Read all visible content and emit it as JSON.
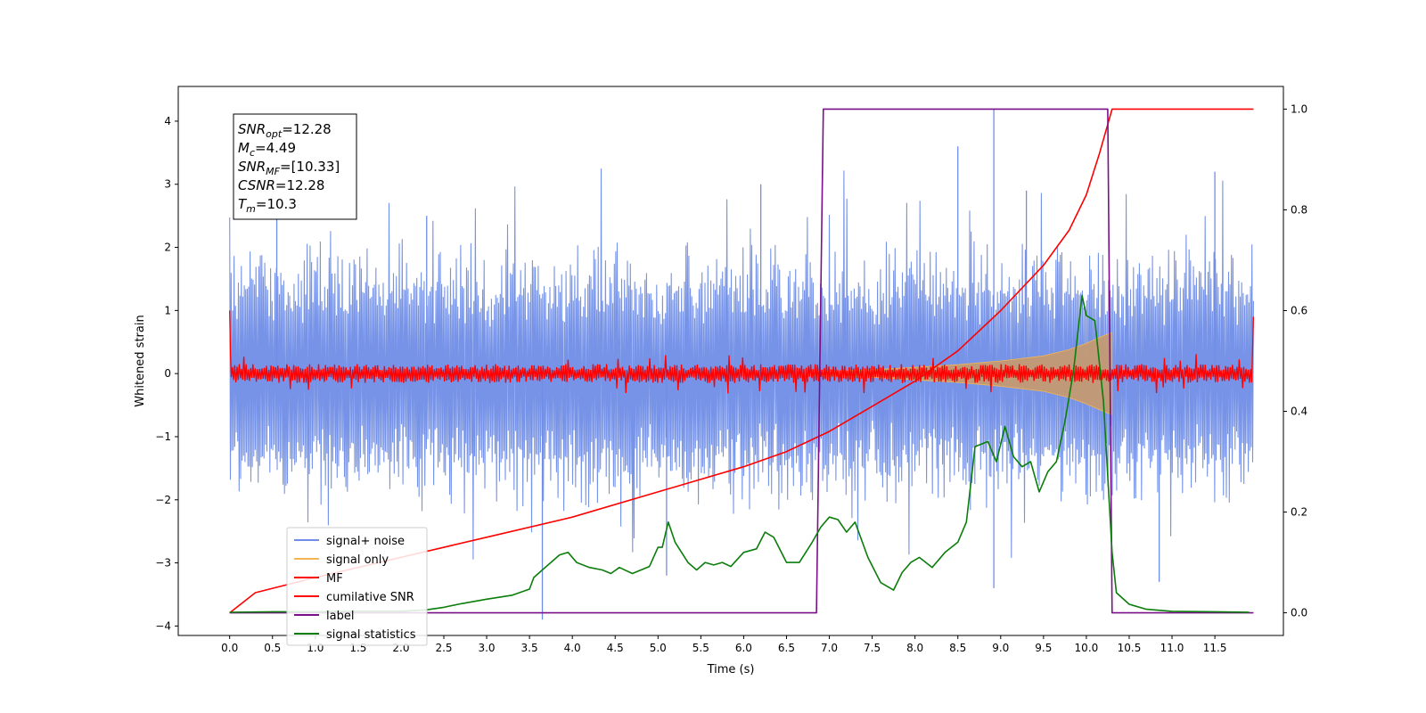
{
  "chart_data": {
    "type": "line",
    "title": "",
    "xlabel": "Time (s)",
    "ylabel": "Whitened strain",
    "xlim": [
      -0.6,
      12.3
    ],
    "ylim": [
      -4.15,
      4.55
    ],
    "y2lim": [
      -0.045,
      1.045
    ],
    "x_ticks": [
      "0.0",
      "0.5",
      "1.0",
      "1.5",
      "2.0",
      "2.5",
      "3.0",
      "3.5",
      "4.0",
      "4.5",
      "5.0",
      "5.5",
      "6.0",
      "6.5",
      "7.0",
      "7.5",
      "8.0",
      "8.5",
      "9.0",
      "9.5",
      "10.0",
      "10.5",
      "11.0",
      "11.5"
    ],
    "y_ticks": [
      "4",
      "3",
      "2",
      "1",
      "0",
      "−1",
      "−2",
      "−3",
      "−4"
    ],
    "y2_ticks": [
      "1.0",
      "0.8",
      "0.6",
      "0.4",
      "0.2",
      "0.0"
    ],
    "grid": false,
    "legend_position": "lower-left",
    "annotation": {
      "lines": [
        {
          "var": "SNR",
          "sub": "opt",
          "value": "=12.28"
        },
        {
          "var": "M",
          "sub": "c",
          "value": "=4.49"
        },
        {
          "var": "SNR",
          "sub": "MF",
          "value": "=[10.33]"
        },
        {
          "var": "CSNR",
          "sub": "",
          "value": "=12.28"
        },
        {
          "var": "T",
          "sub": "m",
          "value": "=10.3"
        }
      ]
    },
    "series": [
      {
        "name": "signal+ noise",
        "axis": "left",
        "color": "#6f8de6",
        "description": "whitened strain noise, roughly uniform amplitude ±2.5 with spikes to ±3.5, from t=0 to t=11.95"
      },
      {
        "name": "signal only",
        "axis": "left",
        "color": "#f5b553",
        "envelope": [
          [
            6.8,
            0.03
          ],
          [
            7.5,
            0.06
          ],
          [
            8.0,
            0.1
          ],
          [
            8.5,
            0.14
          ],
          [
            9.0,
            0.2
          ],
          [
            9.5,
            0.28
          ],
          [
            9.8,
            0.38
          ],
          [
            10.0,
            0.48
          ],
          [
            10.2,
            0.6
          ],
          [
            10.3,
            0.65
          ]
        ]
      },
      {
        "name": "MF",
        "axis": "left",
        "color": "#ff0000",
        "description": "matched filter output, noise amplitude about ±0.15 around 0, edge spikes to 1.0 at t=0 and 0.9 at t=11.95"
      },
      {
        "name": "cumilative SNR",
        "axis": "right",
        "color": "#ff0000",
        "points": [
          [
            0.0,
            0.0
          ],
          [
            0.3,
            0.04
          ],
          [
            1.0,
            0.07
          ],
          [
            2.0,
            0.11
          ],
          [
            3.0,
            0.15
          ],
          [
            4.0,
            0.19
          ],
          [
            5.0,
            0.24
          ],
          [
            6.0,
            0.29
          ],
          [
            6.5,
            0.32
          ],
          [
            7.0,
            0.36
          ],
          [
            7.5,
            0.41
          ],
          [
            8.0,
            0.46
          ],
          [
            8.5,
            0.52
          ],
          [
            9.0,
            0.6
          ],
          [
            9.5,
            0.69
          ],
          [
            9.8,
            0.76
          ],
          [
            10.0,
            0.83
          ],
          [
            10.15,
            0.91
          ],
          [
            10.3,
            1.0
          ],
          [
            11.95,
            1.0
          ]
        ]
      },
      {
        "name": "label",
        "axis": "right",
        "color": "#7b0f8b",
        "points": [
          [
            0.0,
            0.0
          ],
          [
            6.85,
            0.0
          ],
          [
            6.93,
            1.0
          ],
          [
            10.25,
            1.0
          ],
          [
            10.3,
            0.0
          ],
          [
            11.95,
            0.0
          ]
        ]
      },
      {
        "name": "signal statistics",
        "axis": "right",
        "color": "#0b7d0b",
        "points": [
          [
            0.0,
            0.001
          ],
          [
            0.5,
            0.002
          ],
          [
            1.0,
            0.002
          ],
          [
            1.5,
            0.003
          ],
          [
            2.0,
            0.003
          ],
          [
            2.3,
            0.006
          ],
          [
            2.5,
            0.011
          ],
          [
            2.7,
            0.018
          ],
          [
            3.0,
            0.027
          ],
          [
            3.3,
            0.035
          ],
          [
            3.5,
            0.047
          ],
          [
            3.55,
            0.07
          ],
          [
            3.65,
            0.085
          ],
          [
            3.75,
            0.1
          ],
          [
            3.85,
            0.115
          ],
          [
            3.95,
            0.12
          ],
          [
            4.05,
            0.1
          ],
          [
            4.2,
            0.09
          ],
          [
            4.35,
            0.085
          ],
          [
            4.45,
            0.078
          ],
          [
            4.55,
            0.09
          ],
          [
            4.7,
            0.078
          ],
          [
            4.9,
            0.092
          ],
          [
            5.0,
            0.13
          ],
          [
            5.05,
            0.13
          ],
          [
            5.12,
            0.18
          ],
          [
            5.2,
            0.14
          ],
          [
            5.35,
            0.1
          ],
          [
            5.45,
            0.085
          ],
          [
            5.55,
            0.1
          ],
          [
            5.65,
            0.095
          ],
          [
            5.75,
            0.1
          ],
          [
            5.85,
            0.092
          ],
          [
            6.0,
            0.12
          ],
          [
            6.15,
            0.127
          ],
          [
            6.25,
            0.16
          ],
          [
            6.35,
            0.15
          ],
          [
            6.5,
            0.1
          ],
          [
            6.65,
            0.1
          ],
          [
            6.8,
            0.14
          ],
          [
            6.9,
            0.17
          ],
          [
            7.0,
            0.19
          ],
          [
            7.1,
            0.185
          ],
          [
            7.2,
            0.16
          ],
          [
            7.3,
            0.18
          ],
          [
            7.45,
            0.11
          ],
          [
            7.6,
            0.06
          ],
          [
            7.75,
            0.045
          ],
          [
            7.85,
            0.08
          ],
          [
            7.95,
            0.1
          ],
          [
            8.05,
            0.11
          ],
          [
            8.2,
            0.09
          ],
          [
            8.35,
            0.12
          ],
          [
            8.5,
            0.14
          ],
          [
            8.6,
            0.18
          ],
          [
            8.7,
            0.33
          ],
          [
            8.85,
            0.34
          ],
          [
            8.95,
            0.3
          ],
          [
            9.05,
            0.37
          ],
          [
            9.15,
            0.31
          ],
          [
            9.25,
            0.29
          ],
          [
            9.35,
            0.3
          ],
          [
            9.45,
            0.24
          ],
          [
            9.55,
            0.28
          ],
          [
            9.65,
            0.3
          ],
          [
            9.75,
            0.38
          ],
          [
            9.85,
            0.48
          ],
          [
            9.95,
            0.63
          ],
          [
            10.0,
            0.59
          ],
          [
            10.1,
            0.58
          ],
          [
            10.2,
            0.42
          ],
          [
            10.3,
            0.12
          ],
          [
            10.35,
            0.04
          ],
          [
            10.5,
            0.017
          ],
          [
            10.7,
            0.007
          ],
          [
            11.0,
            0.003
          ],
          [
            11.5,
            0.002
          ],
          [
            11.9,
            0.001
          ]
        ]
      }
    ]
  }
}
